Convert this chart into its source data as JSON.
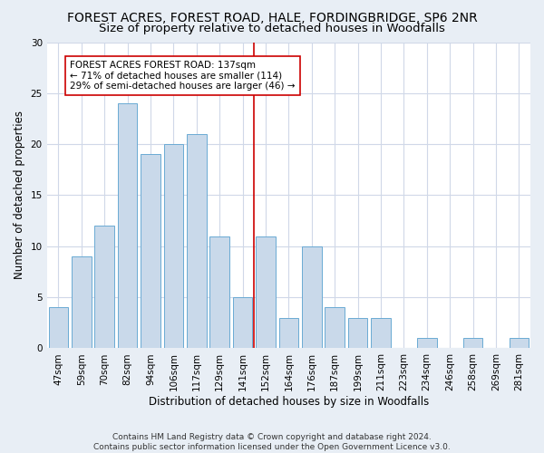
{
  "title": "FOREST ACRES, FOREST ROAD, HALE, FORDINGBRIDGE, SP6 2NR",
  "subtitle": "Size of property relative to detached houses in Woodfalls",
  "xlabel": "Distribution of detached houses by size in Woodfalls",
  "ylabel": "Number of detached properties",
  "categories": [
    "47sqm",
    "59sqm",
    "70sqm",
    "82sqm",
    "94sqm",
    "106sqm",
    "117sqm",
    "129sqm",
    "141sqm",
    "152sqm",
    "164sqm",
    "176sqm",
    "187sqm",
    "199sqm",
    "211sqm",
    "223sqm",
    "234sqm",
    "246sqm",
    "258sqm",
    "269sqm",
    "281sqm"
  ],
  "values": [
    4,
    9,
    12,
    24,
    19,
    20,
    21,
    11,
    5,
    11,
    3,
    10,
    4,
    3,
    3,
    0,
    1,
    0,
    1,
    0,
    1
  ],
  "bar_color": "#c9d9ea",
  "bar_edge_color": "#6aaad4",
  "vline_x": 8.5,
  "vline_color": "#cc0000",
  "annotation_text": "FOREST ACRES FOREST ROAD: 137sqm\n← 71% of detached houses are smaller (114)\n29% of semi-detached houses are larger (46) →",
  "annotation_box_color": "#ffffff",
  "annotation_box_edge": "#cc0000",
  "ylim": [
    0,
    30
  ],
  "yticks": [
    0,
    5,
    10,
    15,
    20,
    25,
    30
  ],
  "grid_color": "#d0d8e8",
  "footer": "Contains HM Land Registry data © Crown copyright and database right 2024.\nContains public sector information licensed under the Open Government Licence v3.0.",
  "bg_color": "#e8eef5",
  "plot_bg_color": "#ffffff",
  "title_fontsize": 10,
  "subtitle_fontsize": 9.5,
  "tick_fontsize": 7.5,
  "ylabel_fontsize": 8.5,
  "xlabel_fontsize": 8.5,
  "annotation_fontsize": 7.5,
  "footer_fontsize": 6.5
}
